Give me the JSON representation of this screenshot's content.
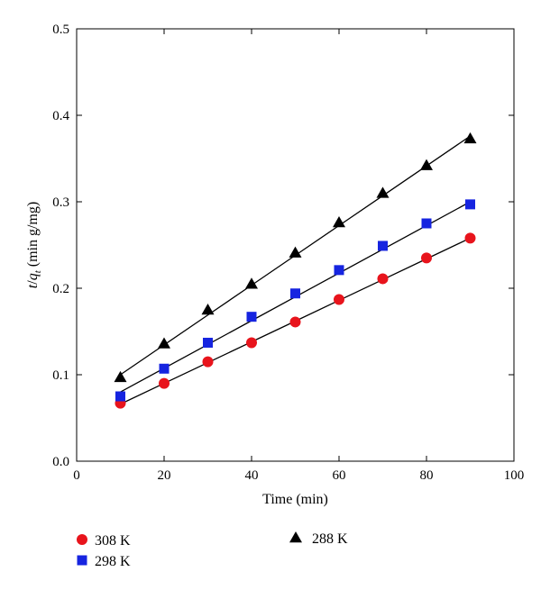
{
  "chart_data": {
    "type": "scatter",
    "xlabel": "Time (min)",
    "ylabel": "t/q_t (min g/mg)",
    "ylabel_parts": {
      "t": "t",
      "slash": "/",
      "q": "q",
      "sub": "t",
      "units": " (min g/mg)"
    },
    "xlim": [
      0,
      100
    ],
    "ylim": [
      0.0,
      0.5
    ],
    "xticks": [
      "0",
      "20",
      "40",
      "60",
      "80",
      "100"
    ],
    "yticks": [
      "0.0",
      "0.1",
      "0.2",
      "0.3",
      "0.4",
      "0.5"
    ],
    "grid": false,
    "legend_position": "bottom, below plot",
    "x": [
      10,
      20,
      30,
      40,
      50,
      60,
      70,
      80,
      90
    ],
    "series": [
      {
        "name": "308 K",
        "marker": "circle",
        "color": "#e8141c",
        "values": [
          0.067,
          0.09,
          0.115,
          0.137,
          0.161,
          0.187,
          0.211,
          0.235,
          0.258
        ],
        "fit": [
          0.066,
          0.09,
          0.114,
          0.138,
          0.162,
          0.186,
          0.21,
          0.234,
          0.258
        ]
      },
      {
        "name": "298 K",
        "marker": "square",
        "color": "#1624e0",
        "values": [
          0.075,
          0.107,
          0.137,
          0.167,
          0.194,
          0.221,
          0.249,
          0.275,
          0.297
        ],
        "fit": [
          0.08,
          0.1075,
          0.135,
          0.1625,
          0.19,
          0.2175,
          0.245,
          0.2725,
          0.3
        ]
      },
      {
        "name": "288 K",
        "marker": "triangle",
        "color": "#000000",
        "values": [
          0.097,
          0.136,
          0.175,
          0.205,
          0.241,
          0.276,
          0.31,
          0.342,
          0.373
        ],
        "fit": [
          0.1,
          0.1345,
          0.169,
          0.2035,
          0.238,
          0.2725,
          0.307,
          0.3415,
          0.376
        ]
      }
    ]
  }
}
